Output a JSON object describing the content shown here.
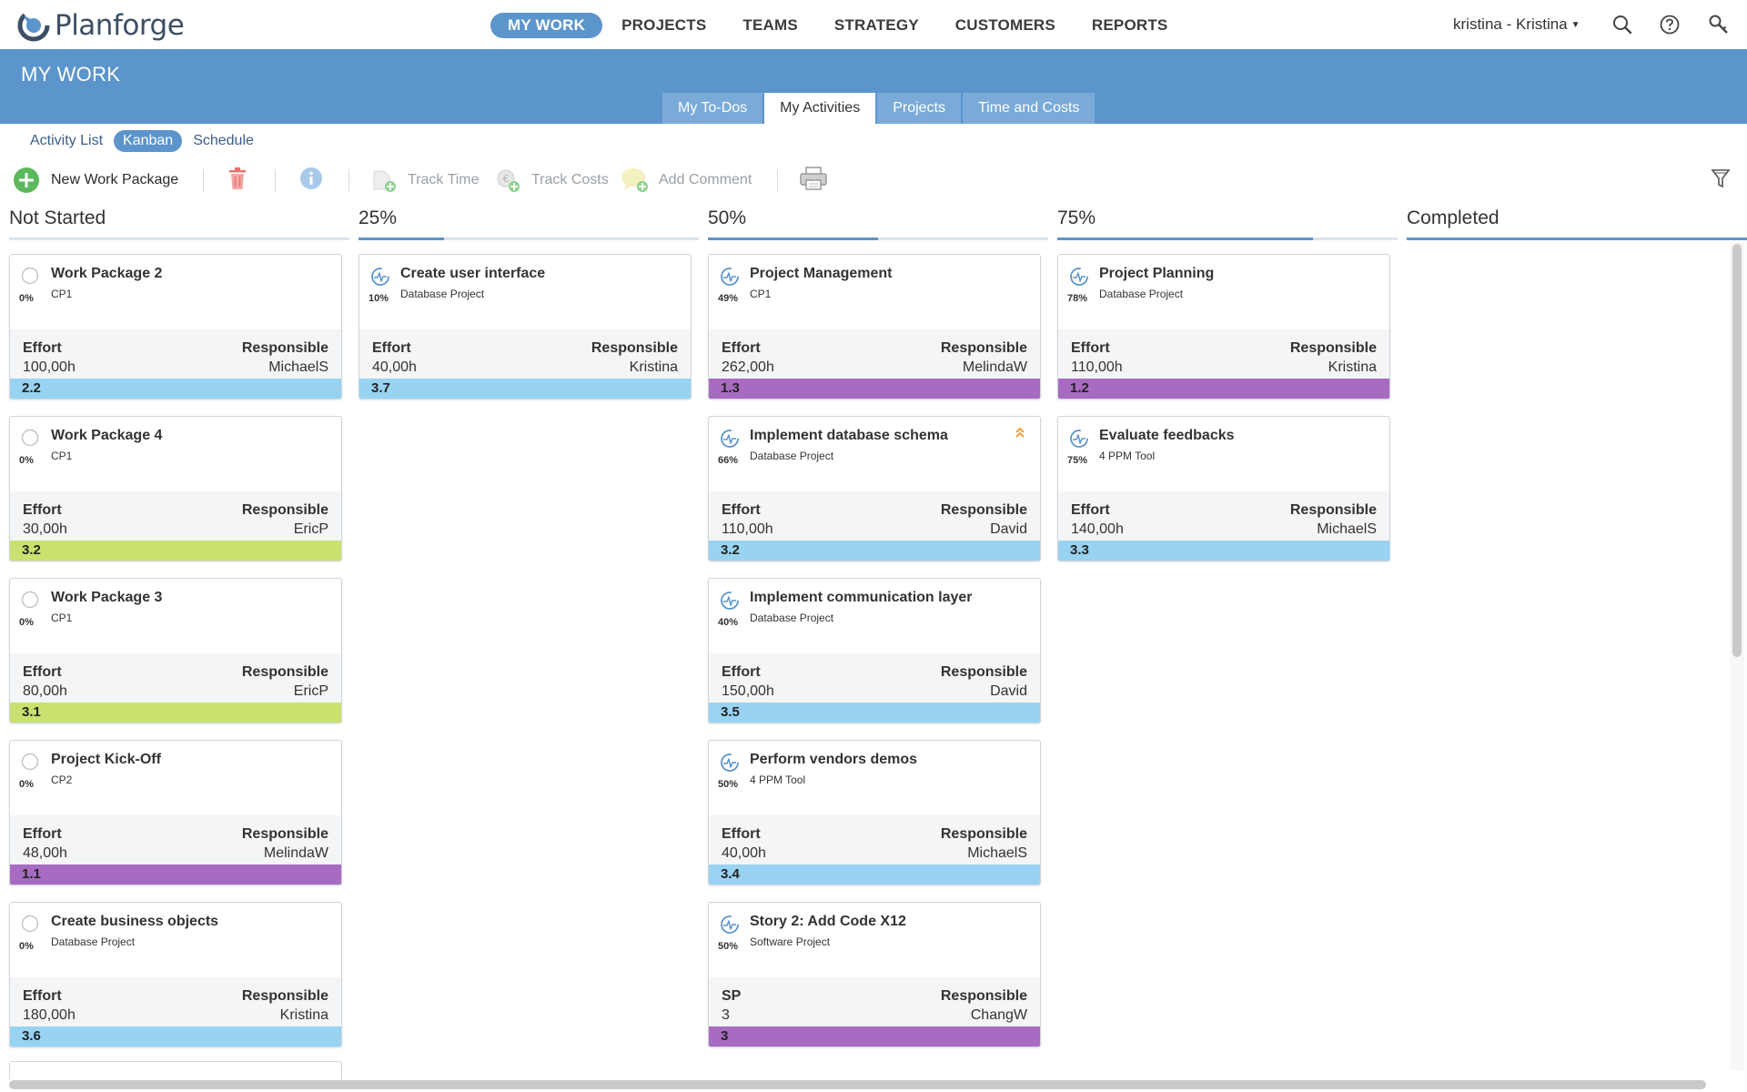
{
  "app": {
    "logo_text": "Planforge",
    "nav": [
      {
        "label": "MY WORK",
        "active": true
      },
      {
        "label": "PROJECTS",
        "active": false
      },
      {
        "label": "TEAMS",
        "active": false
      },
      {
        "label": "STRATEGY",
        "active": false
      },
      {
        "label": "CUSTOMERS",
        "active": false
      },
      {
        "label": "REPORTS",
        "active": false
      }
    ],
    "user": "kristina - Kristina",
    "top_icons": [
      "search-icon",
      "help-icon",
      "key-icon"
    ]
  },
  "header": {
    "title": "MY WORK",
    "tabs": [
      {
        "label": "My To-Dos",
        "active": false
      },
      {
        "label": "My Activities",
        "active": true
      },
      {
        "label": "Projects",
        "active": false
      },
      {
        "label": "Time and Costs",
        "active": false
      }
    ]
  },
  "subview": {
    "items": [
      {
        "label": "Activity List",
        "active": false
      },
      {
        "label": "Kanban",
        "active": true
      },
      {
        "label": "Schedule",
        "active": false
      }
    ]
  },
  "toolbar": {
    "new_work_package": "New Work Package",
    "track_time": "Track Time",
    "track_costs": "Track Costs",
    "add_comment": "Add Comment"
  },
  "columns": [
    {
      "title": "Not Started",
      "progress": 0,
      "cards": [
        {
          "title": "Work Package 2",
          "project": "CP1",
          "percent": "0%",
          "left_label": "Effort",
          "left_value": "100,00h",
          "responsible_label": "Responsible",
          "responsible": "MichaelS",
          "code": "2.2",
          "bar_color": "#99d3f2",
          "status": "not-started",
          "priority": false
        },
        {
          "title": "Work Package 4",
          "project": "CP1",
          "percent": "0%",
          "left_label": "Effort",
          "left_value": "30,00h",
          "responsible_label": "Responsible",
          "responsible": "EricP",
          "code": "3.2",
          "bar_color": "#c9e26f",
          "status": "not-started",
          "priority": false
        },
        {
          "title": "Work Package 3",
          "project": "CP1",
          "percent": "0%",
          "left_label": "Effort",
          "left_value": "80,00h",
          "responsible_label": "Responsible",
          "responsible": "EricP",
          "code": "3.1",
          "bar_color": "#c9e26f",
          "status": "not-started",
          "priority": false
        },
        {
          "title": "Project Kick-Off",
          "project": "CP2",
          "percent": "0%",
          "left_label": "Effort",
          "left_value": "48,00h",
          "responsible_label": "Responsible",
          "responsible": "MelindaW",
          "code": "1.1",
          "bar_color": "#a86bc2",
          "status": "not-started",
          "priority": false
        },
        {
          "title": "Create business objects",
          "project": "Database Project",
          "percent": "0%",
          "left_label": "Effort",
          "left_value": "180,00h",
          "responsible_label": "Responsible",
          "responsible": "Kristina",
          "code": "3.6",
          "bar_color": "#99d3f2",
          "status": "not-started",
          "priority": false
        }
      ]
    },
    {
      "title": "25%",
      "progress": 0.25,
      "cards": [
        {
          "title": "Create user interface",
          "project": "Database Project",
          "percent": "10%",
          "left_label": "Effort",
          "left_value": "40,00h",
          "responsible_label": "Responsible",
          "responsible": "Kristina",
          "code": "3.7",
          "bar_color": "#99d3f2",
          "status": "in-progress",
          "priority": false
        }
      ]
    },
    {
      "title": "50%",
      "progress": 0.5,
      "cards": [
        {
          "title": "Project Management",
          "project": "CP1",
          "percent": "49%",
          "left_label": "Effort",
          "left_value": "262,00h",
          "responsible_label": "Responsible",
          "responsible": "MelindaW",
          "code": "1.3",
          "bar_color": "#a86bc2",
          "status": "in-progress",
          "priority": false
        },
        {
          "title": "Implement database schema",
          "project": "Database Project",
          "percent": "66%",
          "left_label": "Effort",
          "left_value": "110,00h",
          "responsible_label": "Responsible",
          "responsible": "David",
          "code": "3.2",
          "bar_color": "#99d3f2",
          "status": "in-progress",
          "priority": true
        },
        {
          "title": "Implement communication layer",
          "project": "Database Project",
          "percent": "40%",
          "left_label": "Effort",
          "left_value": "150,00h",
          "responsible_label": "Responsible",
          "responsible": "David",
          "code": "3.5",
          "bar_color": "#99d3f2",
          "status": "in-progress",
          "priority": false
        },
        {
          "title": "Perform vendors demos",
          "project": "4 PPM Tool",
          "percent": "50%",
          "left_label": "Effort",
          "left_value": "40,00h",
          "responsible_label": "Responsible",
          "responsible": "MichaelS",
          "code": "3.4",
          "bar_color": "#99d3f2",
          "status": "in-progress",
          "priority": false
        },
        {
          "title": "Story 2: Add Code X12",
          "project": "Software Project",
          "percent": "50%",
          "left_label": "SP",
          "left_value": "3",
          "responsible_label": "Responsible",
          "responsible": "ChangW",
          "code": "3",
          "bar_color": "#a86bc2",
          "status": "in-progress",
          "priority": false
        }
      ]
    },
    {
      "title": "75%",
      "progress": 0.75,
      "cards": [
        {
          "title": "Project Planning",
          "project": "Database Project",
          "percent": "78%",
          "left_label": "Effort",
          "left_value": "110,00h",
          "responsible_label": "Responsible",
          "responsible": "Kristina",
          "code": "1.2",
          "bar_color": "#a86bc2",
          "status": "in-progress",
          "priority": false
        },
        {
          "title": "Evaluate feedbacks",
          "project": "4 PPM Tool",
          "percent": "75%",
          "left_label": "Effort",
          "left_value": "140,00h",
          "responsible_label": "Responsible",
          "responsible": "MichaelS",
          "code": "3.3",
          "bar_color": "#99d3f2",
          "status": "in-progress",
          "priority": false
        }
      ]
    },
    {
      "title": "Completed",
      "progress": 1,
      "cards": []
    }
  ],
  "colors": {
    "accent": "#5b95cc",
    "tab_inactive": "#7aaad8",
    "add_green": "#5cb85c",
    "delete_red": "#e57373",
    "info_blue": "#8fb8e0"
  }
}
